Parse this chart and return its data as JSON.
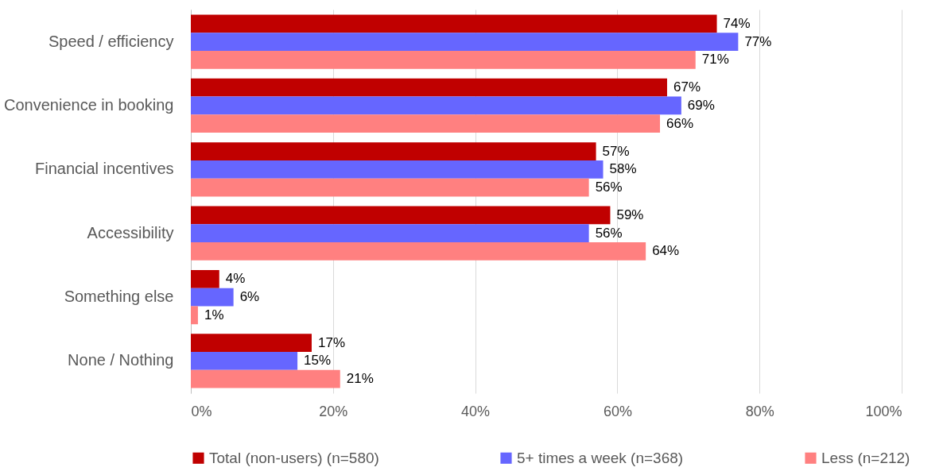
{
  "chart_data": {
    "type": "bar",
    "orientation": "horizontal",
    "categories": [
      "Speed / efficiency",
      "Convenience in booking",
      "Financial incentives",
      "Accessibility",
      "Something else",
      "None / Nothing"
    ],
    "series": [
      {
        "name": "Total (non-users) (n=580)",
        "color": "#c00000",
        "values": [
          74,
          67,
          57,
          59,
          4,
          17
        ],
        "value_labels": [
          "74%",
          "67%",
          "57%",
          "59%",
          "4%",
          "17%"
        ]
      },
      {
        "name": "5+ times a week (n=368)",
        "color": "#6666ff",
        "values": [
          77,
          69,
          58,
          56,
          6,
          15
        ],
        "value_labels": [
          "77%",
          "69%",
          "58%",
          "56%",
          "6%",
          "15%"
        ]
      },
      {
        "name": "Less (n=212)",
        "color": "#ff8080",
        "values": [
          71,
          66,
          56,
          64,
          1,
          21
        ],
        "value_labels": [
          "71%",
          "66%",
          "56%",
          "64%",
          "1%",
          "21%"
        ]
      }
    ],
    "xlim": [
      0,
      100
    ],
    "xticks": [
      {
        "value": 0,
        "label": "0%"
      },
      {
        "value": 20,
        "label": "20%"
      },
      {
        "value": 40,
        "label": "40%"
      },
      {
        "value": 60,
        "label": "60%"
      },
      {
        "value": 80,
        "label": "80%"
      },
      {
        "value": 100,
        "label": "100%"
      }
    ],
    "grid": "x",
    "legend": "bottom"
  }
}
